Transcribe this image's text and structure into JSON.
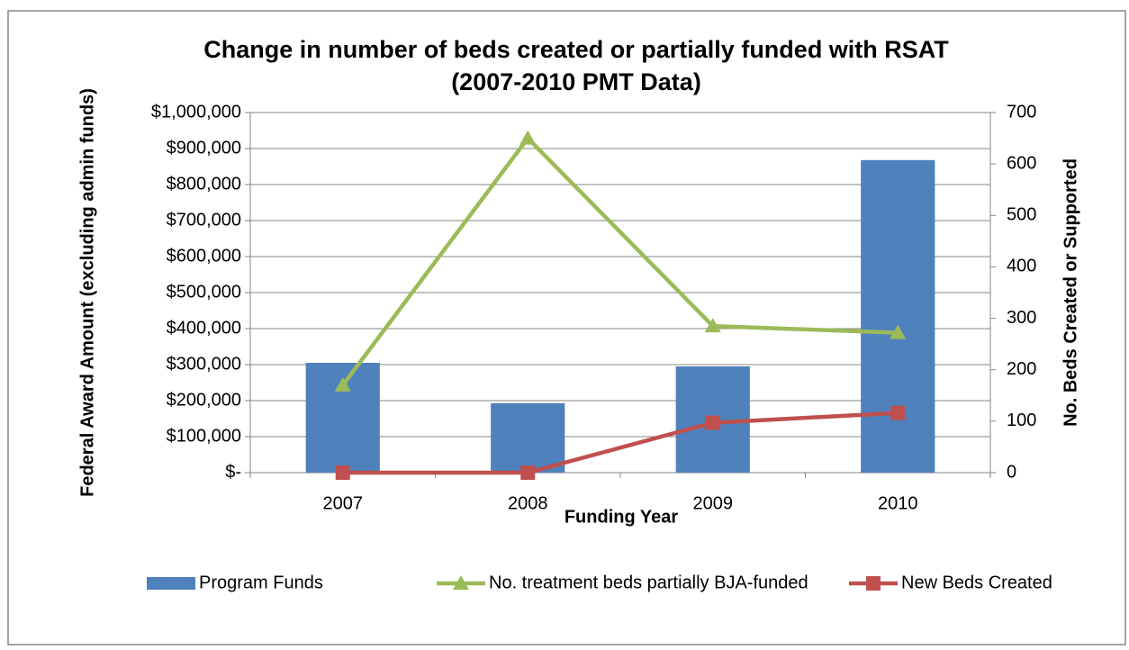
{
  "chart_data": {
    "type": "bar-line",
    "title": [
      "Change in number of beds created or partially funded with RSAT",
      "(2007-2010 PMT Data)"
    ],
    "x_label": "Funding Year",
    "y_label": "Federal Award Amount (excluding admin funds)",
    "y2_label": "No. Beds Created or Supported",
    "categories": [
      "2007",
      "2008",
      "2009",
      "2010"
    ],
    "series": [
      {
        "name": "Program Funds",
        "type": "bar",
        "color": "#4f81bd",
        "values": [
          305000,
          193000,
          295000,
          868000
        ]
      },
      {
        "name": "No. treatment beds partially BJA-funded",
        "type": "line",
        "marker": "triangle",
        "axis": "y2",
        "color": "#9bbb59",
        "values": [
          170,
          650,
          285,
          272
        ]
      },
      {
        "name": "New Beds Created",
        "type": "line",
        "marker": "square",
        "axis": "y2",
        "color": "#c0504d",
        "values": [
          0,
          0,
          97,
          116
        ]
      }
    ],
    "ylim": [
      0,
      1000000
    ],
    "yticks": [
      {
        "value": 0,
        "label": "$-"
      },
      {
        "value": 100000,
        "label": "$100,000"
      },
      {
        "value": 200000,
        "label": "$200,000"
      },
      {
        "value": 300000,
        "label": "$300,000"
      },
      {
        "value": 400000,
        "label": "$400,000"
      },
      {
        "value": 500000,
        "label": "$500,000"
      },
      {
        "value": 600000,
        "label": "$600,000"
      },
      {
        "value": 700000,
        "label": "$700,000"
      },
      {
        "value": 800000,
        "label": "$800,000"
      },
      {
        "value": 900000,
        "label": "$900,000"
      },
      {
        "value": 1000000,
        "label": "$1,000,000"
      }
    ],
    "y2lim": [
      0,
      700
    ],
    "y2ticks": [
      0,
      100,
      200,
      300,
      400,
      500,
      600,
      700
    ],
    "grid": true,
    "legend": "bottom"
  }
}
